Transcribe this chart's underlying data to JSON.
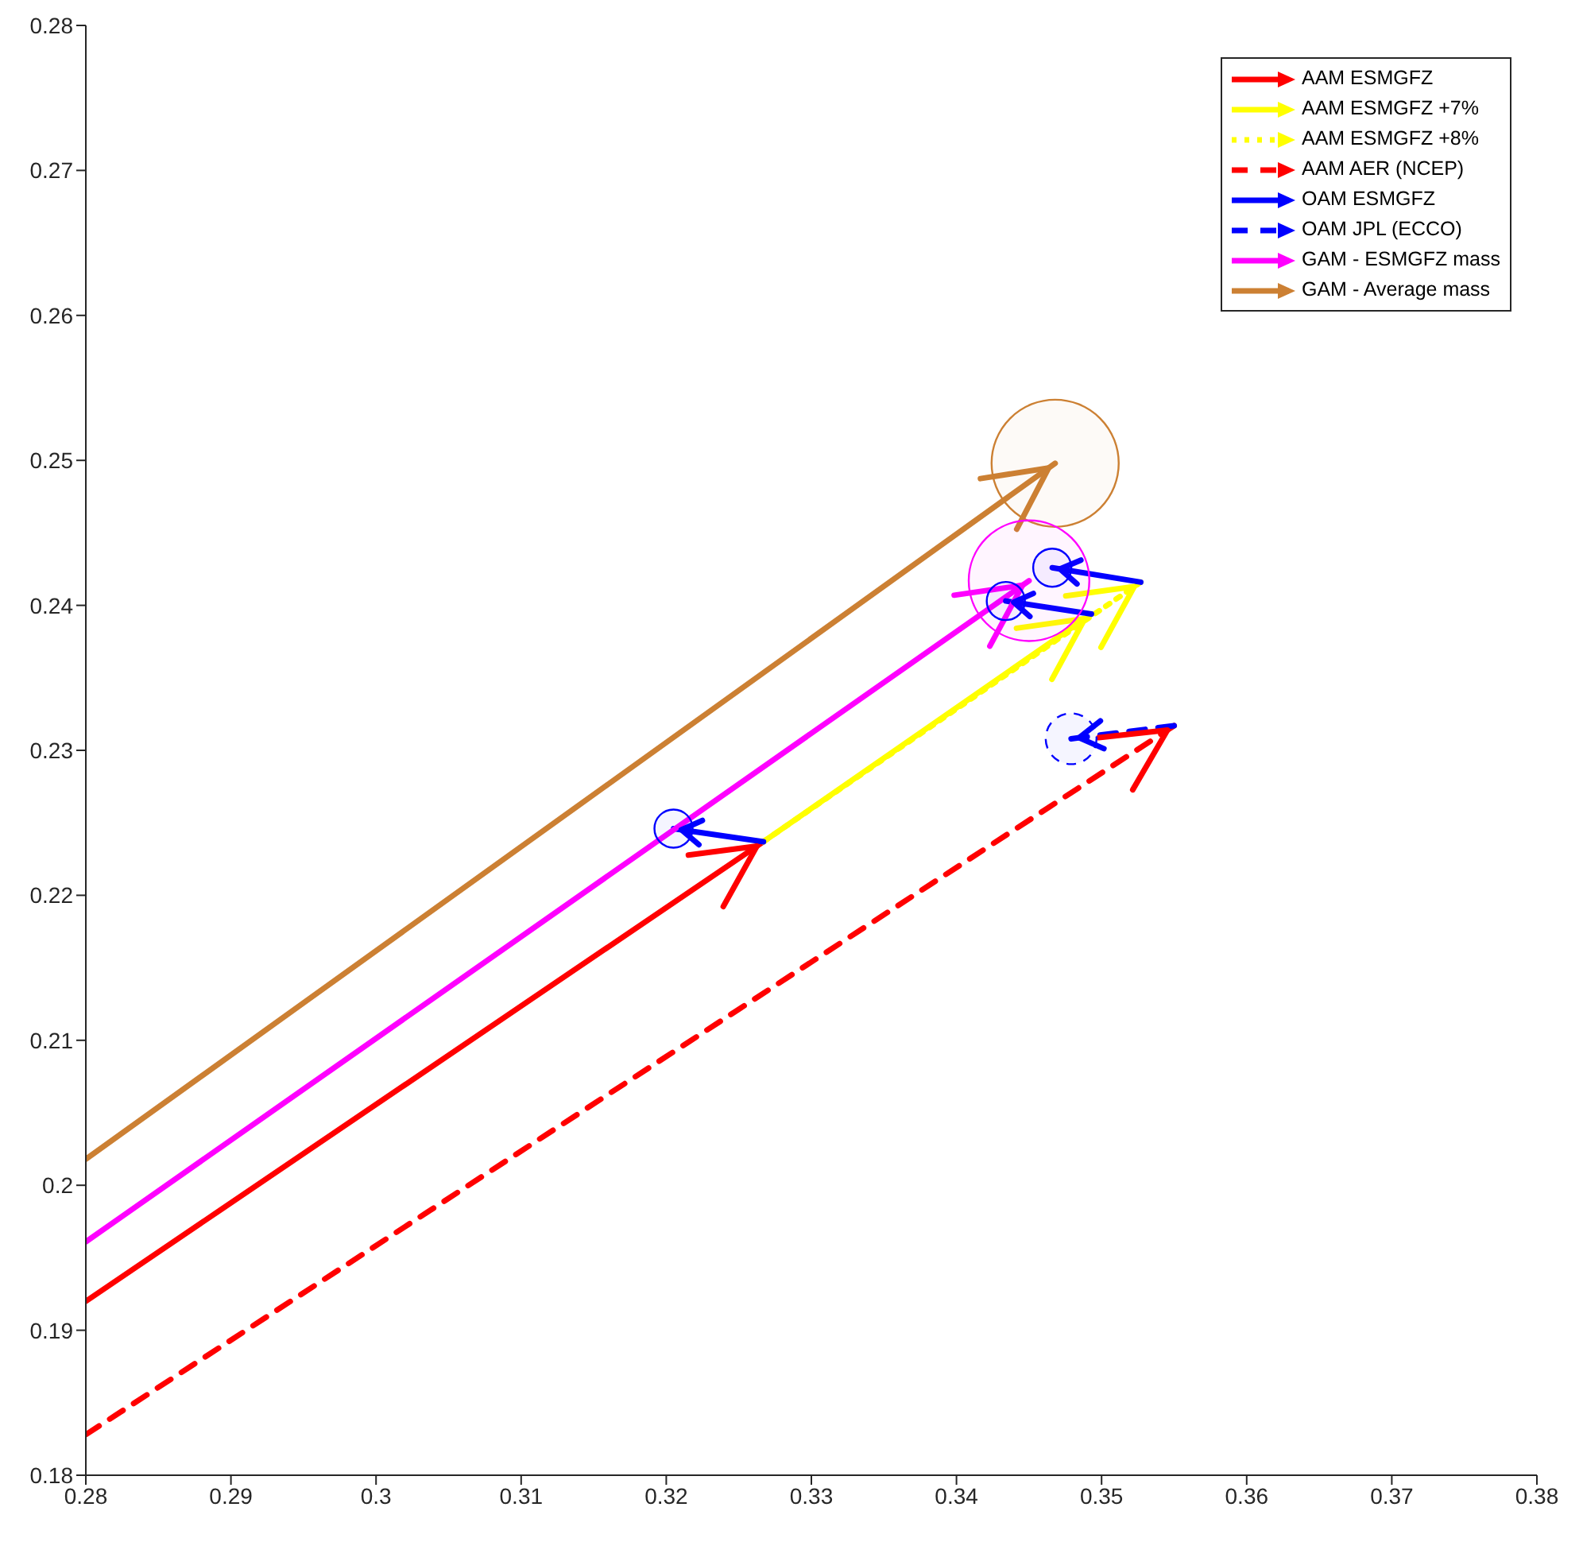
{
  "chart_data": {
    "type": "line",
    "legend": "top right",
    "grid": false,
    "xlim": [
      0.28,
      0.38
    ],
    "xticks": [
      0.28,
      0.29,
      0.3,
      0.31,
      0.32,
      0.33,
      0.34,
      0.35,
      0.36,
      0.37,
      0.38
    ],
    "ylim": [
      0.18,
      0.28
    ],
    "yticks": [
      0.18,
      0.19,
      0.2,
      0.21,
      0.22,
      0.23,
      0.24,
      0.25,
      0.26,
      0.27,
      0.28
    ],
    "series": [
      {
        "name": "AAM ESMGFZ",
        "color": "#ff0000",
        "line_style": "solid",
        "x": [
          0.28,
          0.3267
        ],
        "values": [
          0.192,
          0.2237
        ]
      },
      {
        "name": "AAM ESMGFZ +7%",
        "color": "#ffff00",
        "line_style": "solid",
        "x": [
          0.3267,
          0.3493
        ],
        "values": [
          0.2237,
          0.2394
        ]
      },
      {
        "name": "AAM ESMGFZ +8%",
        "color": "#ffff00",
        "line_style": "dotted",
        "x": [
          0.3267,
          0.3527
        ],
        "values": [
          0.2237,
          0.2416
        ]
      },
      {
        "name": "AAM AER (NCEP)",
        "color": "#ff0000",
        "line_style": "dashed",
        "x": [
          0.28,
          0.355
        ],
        "values": [
          0.1828,
          0.2317
        ]
      },
      {
        "name": "OAM ESMGFZ",
        "color": "#0000ff",
        "line_style": "solid",
        "x": [
          0.3267,
          0.3205
        ],
        "values": [
          0.2237,
          0.2246
        ]
      },
      {
        "name": "OAM JPL (ECCO)",
        "color": "#0000ff",
        "line_style": "dashed",
        "x": [
          0.355,
          0.3479
        ],
        "values": [
          0.2317,
          0.2308
        ]
      },
      {
        "name": "GAM - ESMGFZ mass",
        "color": "#ff00ff",
        "line_style": "solid",
        "x": [
          0.28,
          0.345
        ],
        "values": [
          0.1961,
          0.2417
        ]
      },
      {
        "name": "GAM - Average mass",
        "color": "#cc8033",
        "line_style": "solid",
        "x": [
          0.28,
          0.3468
        ],
        "values": [
          0.2018,
          0.2498
        ]
      },
      {
        "color": "#0000ff",
        "line_style": "solid",
        "x": [
          0.3493,
          0.3434
        ],
        "values": [
          0.2394,
          0.2403
        ]
      },
      {
        "color": "#0000ff",
        "line_style": "solid",
        "x": [
          0.3527,
          0.3466
        ],
        "values": [
          0.2416,
          0.2426
        ]
      },
      {
        "type": "bubble",
        "color": "#cc8033",
        "line_style": "solid",
        "x": [
          0.3468
        ],
        "values": [
          0.2498
        ],
        "sizes": [
          1
        ]
      },
      {
        "type": "bubble",
        "color": "#ff00ff",
        "line_style": "solid",
        "x": [
          0.345
        ],
        "values": [
          0.2417
        ],
        "sizes": [
          0.9
        ]
      },
      {
        "type": "bubble",
        "color": "#0000ff",
        "line_style": "solid",
        "x": [
          0.3205,
          0.3434,
          0.3466
        ],
        "values": [
          0.2246,
          0.2403,
          0.2426
        ],
        "sizes": [
          0.09,
          0.09,
          0.09
        ]
      },
      {
        "type": "bubble",
        "color": "#0000ff",
        "line_style": "dashed",
        "x": [
          0.3479
        ],
        "values": [
          0.2308
        ],
        "sizes": [
          0.16
        ]
      }
    ]
  }
}
